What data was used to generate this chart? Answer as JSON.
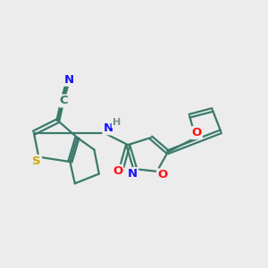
{
  "bg_color": "#ececec",
  "bond_color": "#3a7a6a",
  "bond_width": 1.6,
  "atom_colors": {
    "N": "#1414ff",
    "O": "#ff1010",
    "S": "#ccaa00",
    "C": "#3a7a6a",
    "H": "#7a9090"
  },
  "font_size": 9.5,
  "xlim": [
    0,
    11
  ],
  "ylim": [
    2,
    9
  ]
}
